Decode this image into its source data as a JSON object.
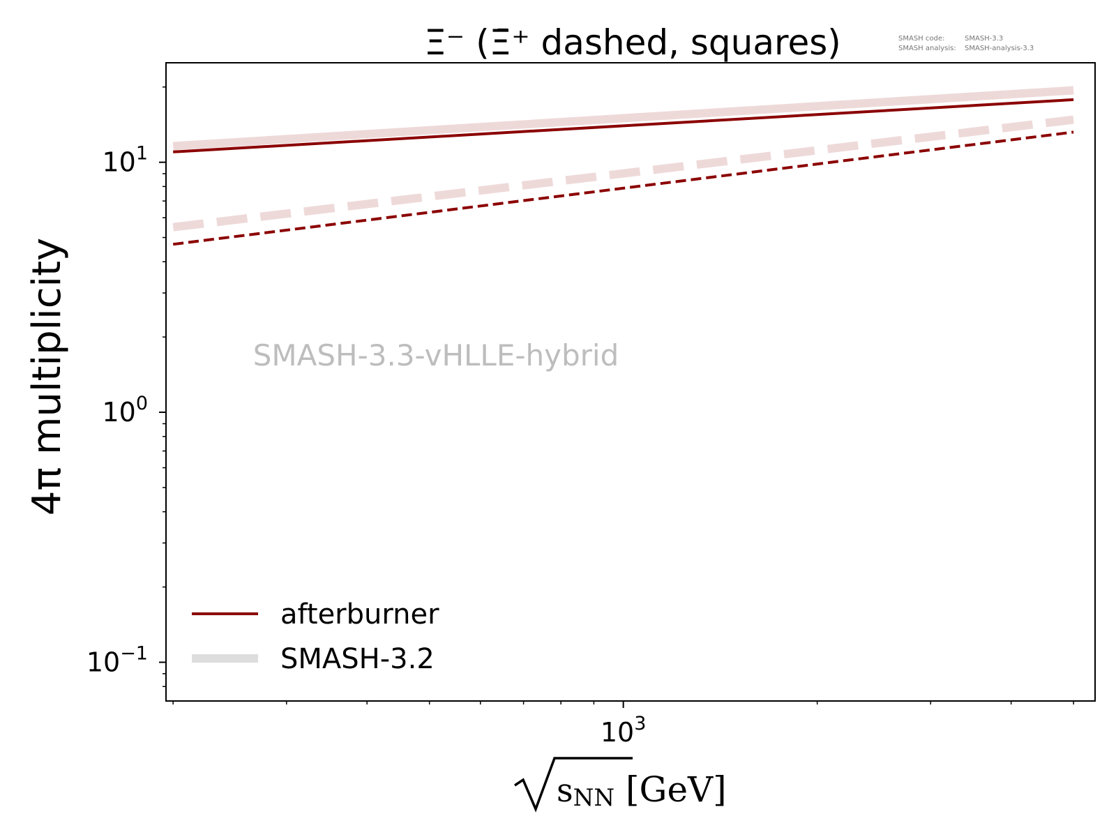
{
  "chart_data": {
    "type": "line",
    "title": "Ξ⁻ (Ξ̄⁺ dashed, squares)",
    "xlabel": "√s_NN [GeV]",
    "ylabel": "4π multiplicity",
    "x_scale": "log",
    "y_scale": "log",
    "xlim": [
      195,
      5400
    ],
    "ylim": [
      0.07,
      25
    ],
    "grid": false,
    "legend_position": "lower-left",
    "watermark": "SMASH-3.3-vHLLE-hybrid",
    "version_info": {
      "code_label": "SMASH code:",
      "code_value": "SMASH-3.3",
      "analysis_label": "SMASH analysis:",
      "analysis_value": "SMASH-analysis-3.3"
    },
    "x_ticks_major": [
      {
        "value": 1000,
        "base": "10",
        "exp": "3"
      }
    ],
    "x_ticks_minor": [
      200,
      300,
      400,
      500,
      600,
      700,
      800,
      900,
      2000,
      3000,
      4000,
      5000
    ],
    "y_ticks_major": [
      {
        "value": 0.1,
        "base": "10",
        "exp": "−1"
      },
      {
        "value": 1,
        "base": "10",
        "exp": "0"
      },
      {
        "value": 10,
        "base": "10",
        "exp": "1"
      }
    ],
    "y_ticks_minor": [
      0.08,
      0.09,
      0.2,
      0.3,
      0.4,
      0.5,
      0.6,
      0.7,
      0.8,
      0.9,
      2,
      3,
      4,
      5,
      6,
      7,
      8,
      9,
      20
    ],
    "series": [
      {
        "name": "afterburner",
        "particle": "Ξ⁻",
        "style": "solid",
        "color": "#8b0000",
        "width": 4,
        "opacity": 1,
        "x": [
          200,
          5000
        ],
        "y": [
          11.0,
          17.8
        ]
      },
      {
        "particle": "Ξ̄⁺",
        "style": "dashed",
        "color": "#8b0000",
        "width": 4,
        "opacity": 1,
        "x": [
          200,
          5000
        ],
        "y": [
          4.7,
          13.2
        ]
      },
      {
        "name": "SMASH-3.2",
        "particle": "Ξ⁻",
        "style": "solid",
        "color": "#8b0000",
        "width": 12,
        "opacity": 0.15,
        "x": [
          200,
          5000
        ],
        "y": [
          11.6,
          19.4
        ]
      },
      {
        "particle": "Ξ̄⁺",
        "style": "dashed",
        "color": "#8b0000",
        "width": 12,
        "opacity": 0.15,
        "x": [
          200,
          5000
        ],
        "y": [
          5.5,
          14.8
        ]
      }
    ],
    "legend": [
      {
        "label": "afterburner",
        "color": "#8b0000",
        "width": 4,
        "opacity": 1
      },
      {
        "label": "SMASH-3.2",
        "color": "#dddddd",
        "width": 12,
        "opacity": 1
      }
    ]
  }
}
